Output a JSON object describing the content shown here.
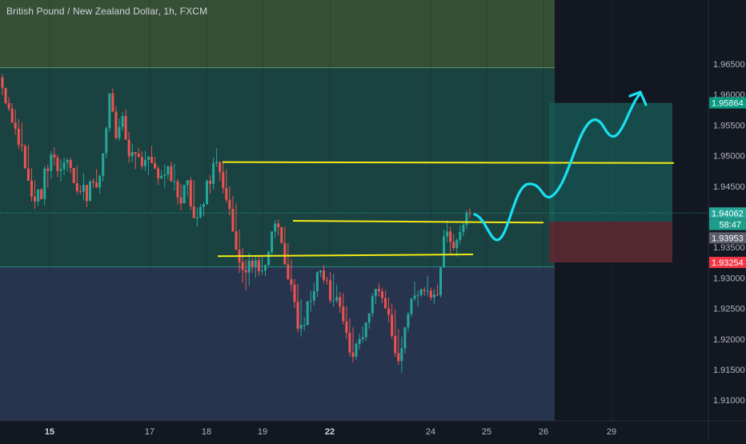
{
  "title": "British Pound / New Zealand Dollar, 1h, FXCM",
  "colors": {
    "background": "#131722",
    "up": "#26a69a",
    "down": "#ef5350",
    "zone_top": "#3d5a3a",
    "zone_mid": "#1b4a47",
    "zone_low": "#2b3a56",
    "target_box": "#175f5a",
    "stop_box": "#5c2a32",
    "level_line": "#f5ea14",
    "path_arrow": "#19e0f0",
    "axis_text": "#b2b5be",
    "current_price": "#26a69a",
    "target_label": "#089981",
    "stop_label": "#f23645",
    "countdown_label": "#1e9e8a",
    "prev_label": "#5d606b"
  },
  "chart_data": {
    "type": "candlestick",
    "title": "British Pound / New Zealand Dollar, 1h, FXCM",
    "x_axis": {
      "tick_labels": [
        "15",
        "17",
        "18",
        "19",
        "22",
        "24",
        "25",
        "26",
        "29"
      ],
      "bold_labels": [
        "15",
        "22"
      ]
    },
    "y_axis": {
      "side": "right",
      "ylim": [
        1.9078,
        1.9705
      ],
      "tick_labels": [
        "1.91000",
        "1.91500",
        "1.92000",
        "1.92500",
        "1.93000",
        "1.93500",
        "1.94000",
        "1.94500",
        "1.95000",
        "1.95500",
        "1.96000",
        "1.96500"
      ]
    },
    "zones": [
      {
        "name": "upper-zone",
        "from": 1.9644,
        "to": 1.9705
      },
      {
        "name": "middle-zone",
        "from": 1.9318,
        "to": 1.9644
      },
      {
        "name": "lower-zone",
        "from": 1.9078,
        "to": 1.9318
      }
    ],
    "price_levels": [
      {
        "name": "upper-resistance",
        "price": 1.9488
      },
      {
        "name": "mid-level",
        "price": 1.939
      },
      {
        "name": "support-level",
        "price": 1.9335
      }
    ],
    "position": {
      "entry": 1.9392,
      "target": 1.95864,
      "stop": 1.93254
    },
    "price_labels": [
      {
        "text": "1.95864",
        "price": 1.95864,
        "kind": "target"
      },
      {
        "text": "1.94062",
        "price": 1.94062,
        "kind": "current"
      },
      {
        "text": "58:47",
        "price": 1.93875,
        "kind": "countdown"
      },
      {
        "text": "1.93953",
        "price": 1.93655,
        "kind": "prev"
      },
      {
        "text": "1.93254",
        "price": 1.93254,
        "kind": "stop"
      }
    ],
    "current_price": 1.94062,
    "candles": {
      "count": 145,
      "open": [
        1.9628,
        1.9611,
        1.9586,
        1.9577,
        1.9554,
        1.9544,
        1.9518,
        1.9516,
        1.9479,
        1.9459,
        1.9433,
        1.9425,
        1.9445,
        1.9429,
        1.9479,
        1.9475,
        1.9502,
        1.9497,
        1.9475,
        1.9478,
        1.9489,
        1.9493,
        1.948,
        1.9455,
        1.9442,
        1.9441,
        1.9452,
        1.9426,
        1.9458,
        1.9456,
        1.9448,
        1.9467,
        1.9504,
        1.9545,
        1.9602,
        1.9572,
        1.9529,
        1.9547,
        1.9565,
        1.9526,
        1.9499,
        1.9506,
        1.9503,
        1.9498,
        1.9483,
        1.9493,
        1.9498,
        1.9488,
        1.9479,
        1.9463,
        1.9467,
        1.9469,
        1.9483,
        1.9458,
        1.9458,
        1.9432,
        1.9422,
        1.9452,
        1.946,
        1.9417,
        1.9398,
        1.9399,
        1.9416,
        1.9421,
        1.9459,
        1.9454,
        1.9488,
        1.949,
        1.9473,
        1.9447,
        1.9428,
        1.9413,
        1.9376,
        1.9346,
        1.9326,
        1.9313,
        1.9309,
        1.9328,
        1.9318,
        1.9329,
        1.9311,
        1.9312,
        1.9321,
        1.9342,
        1.9376,
        1.9389,
        1.9383,
        1.9357,
        1.9322,
        1.9298,
        1.9289,
        1.9261,
        1.9217,
        1.9223,
        1.9223,
        1.9262,
        1.9263,
        1.9278,
        1.9309,
        1.9312,
        1.9297,
        1.9296,
        1.9263,
        1.9263,
        1.9269,
        1.9253,
        1.9229,
        1.921,
        1.9178,
        1.9171,
        1.9192,
        1.92,
        1.9203,
        1.9227,
        1.9242,
        1.927,
        1.9282,
        1.9278,
        1.9267,
        1.925,
        1.924,
        1.9205,
        1.9177,
        1.9164,
        1.9185,
        1.9219,
        1.9241,
        1.9266,
        1.9271,
        1.9272,
        1.9281,
        1.9279,
        1.9279,
        1.9268,
        1.9273,
        1.9272,
        1.9317,
        1.9368,
        1.9376,
        1.9359,
        1.9349,
        1.9362,
        1.9375,
        1.9387,
        1.9407
      ],
      "high": [
        1.9634,
        1.9611,
        1.9596,
        1.9586,
        1.9576,
        1.956,
        1.9554,
        1.9519,
        1.9518,
        1.948,
        1.946,
        1.9445,
        1.9447,
        1.9483,
        1.9485,
        1.9508,
        1.9514,
        1.9502,
        1.9494,
        1.9498,
        1.9496,
        1.9497,
        1.948,
        1.9484,
        1.9451,
        1.9472,
        1.9453,
        1.946,
        1.9463,
        1.9478,
        1.9469,
        1.9504,
        1.9548,
        1.9602,
        1.961,
        1.9581,
        1.9561,
        1.9571,
        1.9576,
        1.9539,
        1.952,
        1.9506,
        1.9513,
        1.9507,
        1.9508,
        1.95,
        1.9516,
        1.9498,
        1.9483,
        1.9476,
        1.9486,
        1.9483,
        1.949,
        1.9487,
        1.9462,
        1.9454,
        1.9453,
        1.946,
        1.9465,
        1.946,
        1.9415,
        1.9421,
        1.9424,
        1.9461,
        1.9468,
        1.9497,
        1.9512,
        1.949,
        1.9491,
        1.9478,
        1.945,
        1.9434,
        1.9422,
        1.9379,
        1.9349,
        1.933,
        1.9341,
        1.9333,
        1.9336,
        1.9335,
        1.9335,
        1.9322,
        1.9345,
        1.9376,
        1.9395,
        1.9396,
        1.9384,
        1.9384,
        1.9357,
        1.9331,
        1.9298,
        1.9291,
        1.9265,
        1.9236,
        1.9262,
        1.9279,
        1.9292,
        1.9311,
        1.9313,
        1.9321,
        1.9302,
        1.931,
        1.9307,
        1.9289,
        1.9277,
        1.9275,
        1.9254,
        1.9234,
        1.9219,
        1.9195,
        1.9209,
        1.9221,
        1.9227,
        1.9242,
        1.9275,
        1.9282,
        1.9291,
        1.9284,
        1.9279,
        1.9268,
        1.9258,
        1.9249,
        1.9216,
        1.9204,
        1.922,
        1.9245,
        1.9267,
        1.9294,
        1.9279,
        1.9283,
        1.9285,
        1.9304,
        1.9284,
        1.9282,
        1.9289,
        1.9318,
        1.9379,
        1.9394,
        1.9384,
        1.9372,
        1.9365,
        1.9386,
        1.9391,
        1.9411,
        1.9414
      ],
      "low": [
        1.9599,
        1.9584,
        1.9573,
        1.9554,
        1.9534,
        1.9511,
        1.9507,
        1.9479,
        1.9459,
        1.9425,
        1.9413,
        1.9418,
        1.9428,
        1.9418,
        1.9448,
        1.9462,
        1.9484,
        1.9465,
        1.9458,
        1.9468,
        1.9474,
        1.9471,
        1.9455,
        1.9436,
        1.9437,
        1.9427,
        1.9416,
        1.9425,
        1.9447,
        1.9447,
        1.9438,
        1.9458,
        1.9496,
        1.9539,
        1.9572,
        1.9526,
        1.9524,
        1.954,
        1.9526,
        1.9488,
        1.9489,
        1.9478,
        1.9497,
        1.9478,
        1.9475,
        1.9468,
        1.9488,
        1.9478,
        1.9452,
        1.9462,
        1.9448,
        1.9462,
        1.9458,
        1.9443,
        1.942,
        1.9411,
        1.9422,
        1.9433,
        1.9411,
        1.9398,
        1.9384,
        1.9397,
        1.9401,
        1.9419,
        1.9438,
        1.9445,
        1.9482,
        1.9459,
        1.9438,
        1.9423,
        1.9402,
        1.9376,
        1.9346,
        1.9308,
        1.9292,
        1.928,
        1.9287,
        1.9308,
        1.93,
        1.9303,
        1.9305,
        1.9303,
        1.932,
        1.9338,
        1.9365,
        1.937,
        1.9357,
        1.9322,
        1.9297,
        1.9278,
        1.9251,
        1.9211,
        1.9204,
        1.9213,
        1.9222,
        1.9245,
        1.9255,
        1.9269,
        1.9302,
        1.9291,
        1.9289,
        1.9258,
        1.9253,
        1.9259,
        1.9243,
        1.9224,
        1.92,
        1.9172,
        1.9162,
        1.9166,
        1.9183,
        1.9194,
        1.9197,
        1.9217,
        1.9236,
        1.9257,
        1.927,
        1.9259,
        1.925,
        1.9228,
        1.92,
        1.9171,
        1.9158,
        1.9145,
        1.9176,
        1.9212,
        1.9236,
        1.9262,
        1.9254,
        1.9269,
        1.9271,
        1.927,
        1.9263,
        1.9257,
        1.927,
        1.9268,
        1.9317,
        1.9358,
        1.9339,
        1.9345,
        1.9335,
        1.9355,
        1.9368,
        1.938,
        1.9398
      ],
      "close": [
        1.9611,
        1.9586,
        1.9577,
        1.9554,
        1.9544,
        1.9518,
        1.9516,
        1.9479,
        1.9459,
        1.9433,
        1.9425,
        1.9445,
        1.9429,
        1.9479,
        1.9475,
        1.9502,
        1.9497,
        1.9475,
        1.9478,
        1.9489,
        1.9493,
        1.948,
        1.9455,
        1.9442,
        1.9441,
        1.9452,
        1.9426,
        1.9458,
        1.9456,
        1.9448,
        1.9467,
        1.9504,
        1.9545,
        1.9602,
        1.9572,
        1.9529,
        1.9547,
        1.9565,
        1.9526,
        1.9499,
        1.9506,
        1.9503,
        1.9498,
        1.9483,
        1.9493,
        1.9498,
        1.9488,
        1.9479,
        1.9463,
        1.9467,
        1.9469,
        1.9483,
        1.9458,
        1.9458,
        1.9432,
        1.9422,
        1.9452,
        1.946,
        1.9417,
        1.9398,
        1.9399,
        1.9416,
        1.9421,
        1.9459,
        1.9454,
        1.9488,
        1.949,
        1.9473,
        1.9447,
        1.9428,
        1.9413,
        1.9376,
        1.9346,
        1.9326,
        1.9313,
        1.9309,
        1.9328,
        1.9318,
        1.9329,
        1.9311,
        1.9312,
        1.9321,
        1.9342,
        1.9376,
        1.9389,
        1.9383,
        1.9357,
        1.9322,
        1.9298,
        1.9289,
        1.9261,
        1.9217,
        1.9223,
        1.9223,
        1.9262,
        1.9263,
        1.9278,
        1.9309,
        1.9312,
        1.9297,
        1.9296,
        1.9263,
        1.9263,
        1.9269,
        1.9253,
        1.9229,
        1.921,
        1.9178,
        1.9171,
        1.9192,
        1.92,
        1.9203,
        1.9227,
        1.9242,
        1.927,
        1.9282,
        1.9278,
        1.9267,
        1.925,
        1.924,
        1.9205,
        1.9177,
        1.9164,
        1.9185,
        1.9219,
        1.9241,
        1.9266,
        1.9271,
        1.9272,
        1.9281,
        1.9279,
        1.9279,
        1.9268,
        1.9273,
        1.9272,
        1.9317,
        1.9368,
        1.9376,
        1.9359,
        1.9349,
        1.9362,
        1.9375,
        1.9387,
        1.9407,
        1.9406
      ]
    }
  }
}
